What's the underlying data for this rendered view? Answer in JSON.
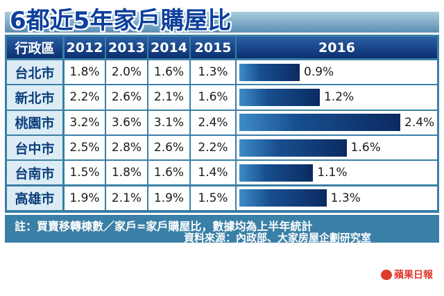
{
  "title": "6都近5年家戶購屋比",
  "headers": {
    "region": "行政區",
    "years": [
      "2012",
      "2013",
      "2014",
      "2015"
    ],
    "latest": "2016"
  },
  "notes": {
    "line1": "註：買賣移轉棟數／家戶=家戶購屋比，數據均為上半年統計",
    "line2": "資料來源：內政部、大家房屋企劃研究室"
  },
  "logo": {
    "text": "蘋果日報"
  },
  "colors": {
    "accent": "#0b2a62",
    "table_border": "#3a7fa6",
    "city_bg": "#dcecf5"
  },
  "chart_data": {
    "type": "table",
    "columns": [
      "行政區",
      "2012",
      "2013",
      "2014",
      "2015",
      "2016"
    ],
    "rows": [
      {
        "city": "台北市",
        "values": [
          "1.8%",
          "2.0%",
          "1.6%",
          "1.3%"
        ],
        "v2016": 0.9,
        "label2016": "0.9%"
      },
      {
        "city": "新北市",
        "values": [
          "2.2%",
          "2.6%",
          "2.1%",
          "1.6%"
        ],
        "v2016": 1.2,
        "label2016": "1.2%"
      },
      {
        "city": "桃園市",
        "values": [
          "3.2%",
          "3.6%",
          "3.1%",
          "2.4%"
        ],
        "v2016": 2.4,
        "label2016": "2.4%"
      },
      {
        "city": "台中市",
        "values": [
          "2.5%",
          "2.8%",
          "2.6%",
          "2.2%"
        ],
        "v2016": 1.6,
        "label2016": "1.6%"
      },
      {
        "city": "台南市",
        "values": [
          "1.5%",
          "1.8%",
          "1.6%",
          "1.4%"
        ],
        "v2016": 1.1,
        "label2016": "1.1%"
      },
      {
        "city": "高雄市",
        "values": [
          "1.9%",
          "2.1%",
          "1.9%",
          "1.5%"
        ],
        "v2016": 1.3,
        "label2016": "1.3%"
      }
    ],
    "bar_series": "2016",
    "bar_max": 2.4
  }
}
